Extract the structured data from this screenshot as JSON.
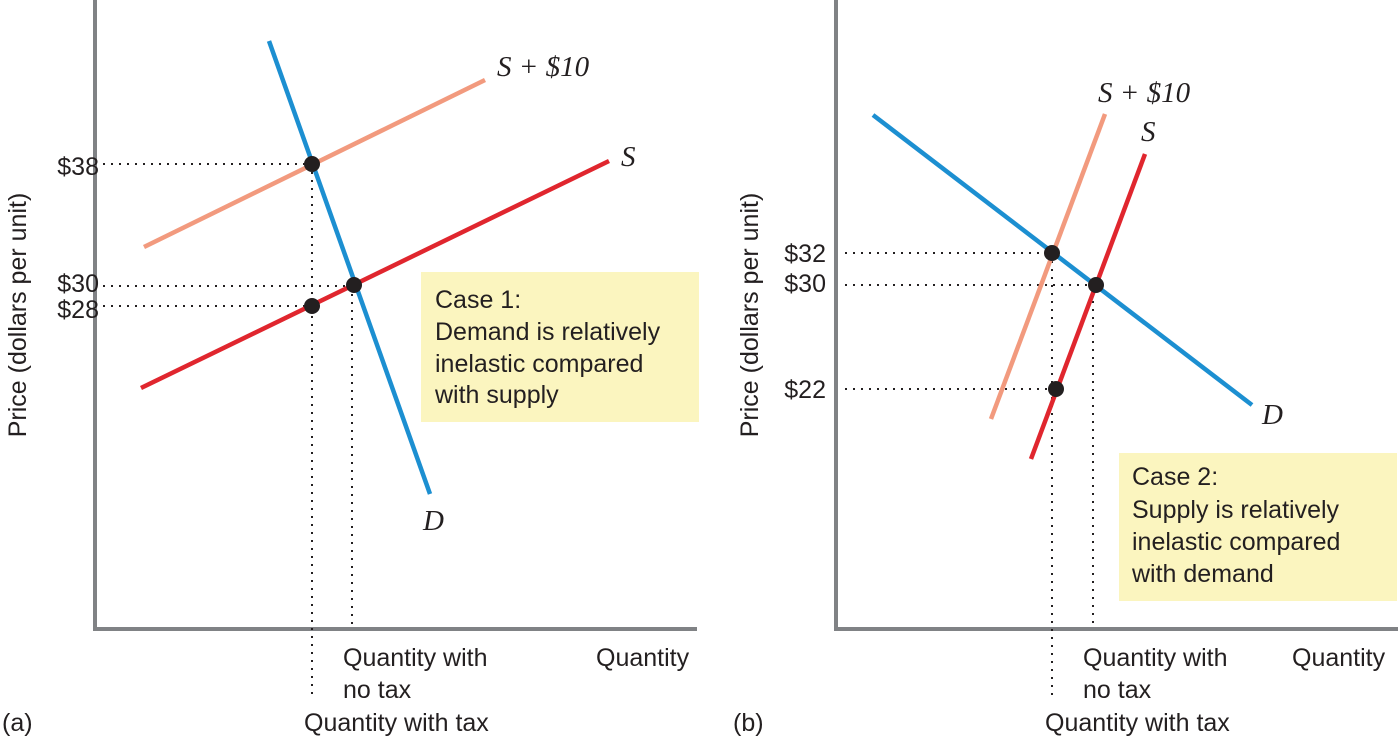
{
  "colors": {
    "demand": "#1c8fd1",
    "supply": "#e0262e",
    "supply_tax": "#f29a7e",
    "case_box": "#fbf5bf",
    "axis": "#808285"
  },
  "panel_a": {
    "panel_label": "(a)",
    "y_axis_title": "Price (dollars per unit)",
    "x_axis_title": "Quantity",
    "qty_no_tax_label_1": "Quantity with",
    "qty_no_tax_label_2": "no tax",
    "qty_with_tax_label": "Quantity with tax",
    "price_labels": {
      "p38": "$38",
      "p30": "$30",
      "p28": "$28"
    },
    "curve_labels": {
      "supply_tax": "S + $10",
      "supply": "S",
      "demand": "D"
    },
    "case_box": {
      "line1": "Case 1:",
      "line2": "Demand is relatively",
      "line3": "inelastic compared",
      "line4": "with supply"
    }
  },
  "panel_b": {
    "panel_label": "(b)",
    "y_axis_title": "Price (dollars per unit)",
    "x_axis_title": "Quantity",
    "qty_no_tax_label_1": "Quantity with",
    "qty_no_tax_label_2": "no tax",
    "qty_with_tax_label": "Quantity with tax",
    "price_labels": {
      "p32": "$32",
      "p30": "$30",
      "p22": "$22"
    },
    "curve_labels": {
      "supply_tax": "S + $10",
      "supply": "S",
      "demand": "D"
    },
    "case_box": {
      "line1": "Case 2:",
      "line2": "Supply is relatively",
      "line3": "inelastic compared",
      "line4": "with demand"
    }
  }
}
